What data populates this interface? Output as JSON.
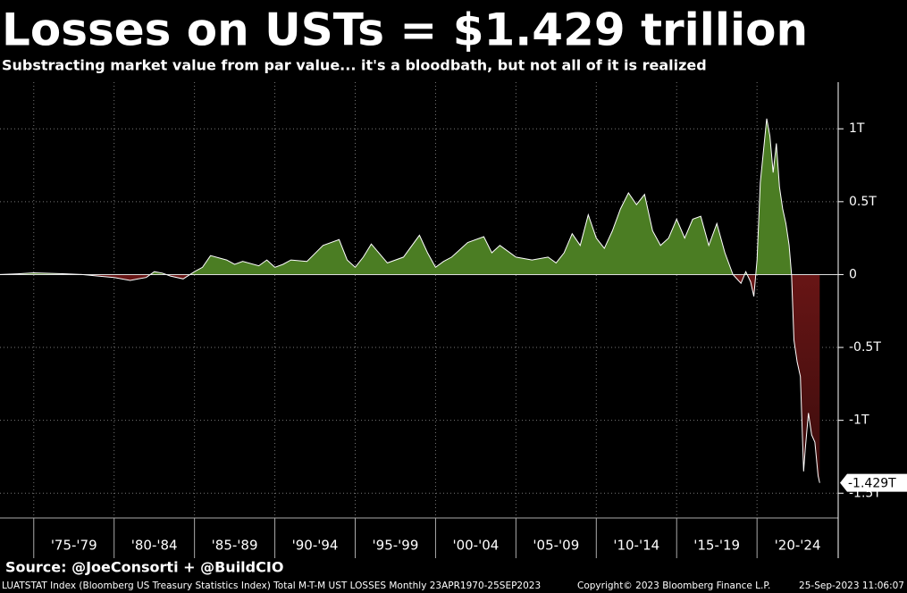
{
  "chart_data": {
    "type": "area",
    "title": "Losses on USTs = $1.429 trillion",
    "subtitle": "Substracting market value from par value... it's a bloodbath, but not all of it is realized",
    "x": [
      1972.9,
      1974,
      1975,
      1977,
      1978,
      1979,
      1980,
      1981,
      1981.5,
      1982,
      1982.5,
      1983,
      1983.5,
      1984.3,
      1985,
      1985.5,
      1986,
      1987,
      1987.5,
      1988,
      1989,
      1989.5,
      1990,
      1990.5,
      1991,
      1992,
      1993,
      1994,
      1994.5,
      1995,
      1995.5,
      1996,
      1997,
      1998,
      1999,
      1999.5,
      2000,
      2000.5,
      2001,
      2002,
      2003,
      2003.5,
      2004,
      2005,
      2006,
      2007,
      2007.5,
      2008,
      2008.5,
      2009,
      2009.5,
      2010,
      2010.5,
      2011,
      2011.5,
      2012,
      2012.5,
      2013,
      2013.5,
      2014,
      2014.5,
      2015,
      2015.5,
      2016,
      2016.5,
      2017,
      2017.5,
      2018,
      2018.5,
      2019,
      2019.3,
      2019.6,
      2019.8,
      2020,
      2020.2,
      2020.4,
      2020.6,
      2020.8,
      2021,
      2021.2,
      2021.4,
      2021.6,
      2021.8,
      2022,
      2022.15,
      2022.3,
      2022.5,
      2022.7,
      2022.9,
      2023,
      2023.2,
      2023.4,
      2023.6,
      2023.8,
      2023.9
    ],
    "values": [
      0,
      0.005,
      0.012,
      0.005,
      0,
      -0.01,
      -0.02,
      -0.04,
      -0.03,
      -0.02,
      0.02,
      0.01,
      -0.01,
      -0.03,
      0.02,
      0.05,
      0.13,
      0.1,
      0.07,
      0.09,
      0.06,
      0.1,
      0.05,
      0.07,
      0.1,
      0.09,
      0.2,
      0.24,
      0.1,
      0.05,
      0.12,
      0.21,
      0.08,
      0.12,
      0.27,
      0.15,
      0.05,
      0.09,
      0.12,
      0.22,
      0.26,
      0.15,
      0.2,
      0.12,
      0.1,
      0.12,
      0.08,
      0.15,
      0.28,
      0.2,
      0.41,
      0.25,
      0.18,
      0.3,
      0.45,
      0.56,
      0.48,
      0.55,
      0.3,
      0.2,
      0.25,
      0.38,
      0.25,
      0.38,
      0.4,
      0.2,
      0.35,
      0.15,
      0,
      -0.06,
      0.02,
      -0.05,
      -0.15,
      0.1,
      0.63,
      0.85,
      1.07,
      0.95,
      0.7,
      0.9,
      0.6,
      0.45,
      0.35,
      0.2,
      0,
      -0.45,
      -0.6,
      -0.7,
      -1.35,
      -1.2,
      -0.95,
      -1.1,
      -1.15,
      -1.38,
      -1.429
    ],
    "last_label": "-1.429T",
    "pos_color": "#4b7d23",
    "neg_color": "#8a1c1c",
    "line_color": "#ffffff",
    "xlim": [
      1972.9,
      2025.05
    ],
    "ylim": [
      -1.67,
      1.32
    ],
    "yticks": [
      {
        "value": 1,
        "label": "1T"
      },
      {
        "value": 0.5,
        "label": "0.5T"
      },
      0,
      {
        "value": -0.5,
        "label": "-0.5T"
      },
      {
        "value": -1,
        "label": "-1T"
      },
      {
        "value": -1.5,
        "label": "-1.5T"
      }
    ],
    "xbands": [
      {
        "start": 1975,
        "label": "'75-'79"
      },
      {
        "start": 1980,
        "label": "'80-'84"
      },
      {
        "start": 1985,
        "label": "'85-'89"
      },
      {
        "start": 1990,
        "label": "'90-'94"
      },
      {
        "start": 1995,
        "label": "'95-'99"
      },
      {
        "start": 2000,
        "label": "'00-'04"
      },
      {
        "start": 2005,
        "label": "'05-'09"
      },
      {
        "start": 2010,
        "label": "'10-'14"
      },
      {
        "start": 2015,
        "label": "'15-'19"
      },
      {
        "start": 2020,
        "label": "'20-'24"
      }
    ],
    "grid": true
  },
  "footer": {
    "source": "Source: @JoeConsorti + @BuildCIO",
    "description": "LUATSTAT Index (Bloomberg US Treasury Statistics Index) Total M-T-M UST LOSSES  Monthly 23APR1970-25SEP2023",
    "copyright": "Copyright© 2023 Bloomberg Finance L.P.",
    "timestamp": "25-Sep-2023 11:06:07"
  }
}
